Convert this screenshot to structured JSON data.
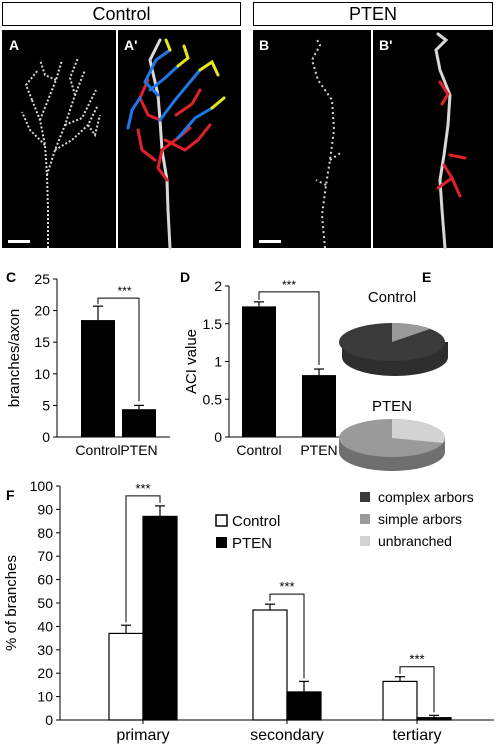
{
  "headers": {
    "left": "Control",
    "right": "PTEN"
  },
  "panel_letters": {
    "A": "A",
    "A2": "A'",
    "B": "B",
    "B2": "B'",
    "C": "C",
    "D": "D",
    "E": "E",
    "F": "F"
  },
  "significance": "***",
  "legend_f": {
    "control": "Control",
    "pten": "PTEN"
  },
  "legend_e": {
    "complex": "complex arbors",
    "simple": "simple arbors",
    "unbranched": "unbranched"
  },
  "pie_labels": {
    "control": "Control",
    "pten": "PTEN"
  },
  "colors": {
    "control_bar": "#ffffff",
    "pten_bar": "#000000",
    "complex": "#3a3a3a",
    "simple": "#9a9a9a",
    "unbranched": "#d3d3d3",
    "trace_red": "#e0202a",
    "trace_blue": "#1e78e6",
    "trace_yellow": "#e6e61e"
  },
  "chart_data": [
    {
      "type": "bar",
      "panel": "C",
      "categories": [
        "Control",
        "PTEN"
      ],
      "values": [
        18.5,
        4.4
      ],
      "errors": [
        2.2,
        0.6
      ],
      "ylabel": "branches/axon",
      "ylim": [
        0,
        25
      ],
      "yticks": [
        "0",
        "5",
        "10",
        "15",
        "20",
        "25"
      ]
    },
    {
      "type": "bar",
      "panel": "D",
      "categories": [
        "Control",
        "PTEN"
      ],
      "values": [
        1.73,
        0.82
      ],
      "errors": [
        0.06,
        0.08
      ],
      "ylabel": "ACI value",
      "ylim": [
        0,
        2
      ],
      "yticks": [
        "0",
        "0.5",
        "1",
        "1.5",
        "2"
      ]
    },
    {
      "type": "pie",
      "panel": "E",
      "pies": [
        {
          "name": "Control",
          "slices": [
            {
              "label": "complex arbors",
              "value": 88
            },
            {
              "label": "simple arbors",
              "value": 12
            },
            {
              "label": "unbranched",
              "value": 0
            }
          ]
        },
        {
          "name": "PTEN",
          "slices": [
            {
              "label": "complex arbors",
              "value": 0
            },
            {
              "label": "simple arbors",
              "value": 72
            },
            {
              "label": "unbranched",
              "value": 28
            }
          ]
        }
      ]
    },
    {
      "type": "bar",
      "panel": "F",
      "categories": [
        "primary",
        "secondary",
        "tertiary"
      ],
      "series": [
        {
          "name": "Control",
          "values": [
            37,
            47,
            16.5
          ],
          "errors": [
            3.5,
            2.5,
            2.0
          ]
        },
        {
          "name": "PTEN",
          "values": [
            87,
            12,
            1
          ],
          "errors": [
            4.5,
            4.5,
            1.0
          ]
        }
      ],
      "ylabel": "% of branches",
      "ylim": [
        0,
        100
      ],
      "yticks": [
        "0",
        "10",
        "20",
        "30",
        "40",
        "50",
        "60",
        "70",
        "80",
        "90",
        "100"
      ]
    }
  ]
}
